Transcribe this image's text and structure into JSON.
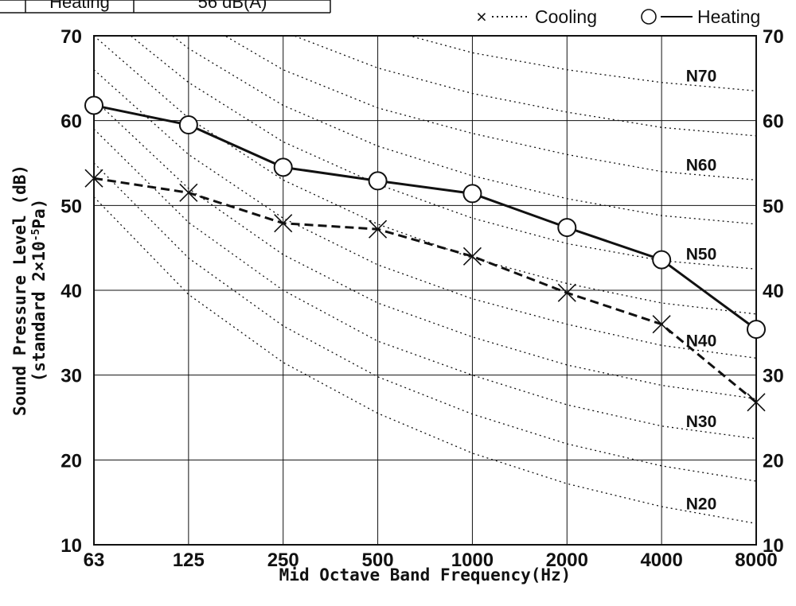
{
  "table": {
    "row_label": "Heating",
    "row_value": "56 dB(A)"
  },
  "legend": {
    "cooling_marker": "×",
    "cooling_label": "Cooling",
    "heating_label": "Heating"
  },
  "chart_data": {
    "type": "line",
    "xlabel": "Mid Octave Band Frequency(Hz)",
    "ylabel_line1": "Sound Pressure Level (dB)",
    "ylabel_line2_prefix": "(standard 2×10",
    "ylabel_line2_exp": "-5",
    "ylabel_line2_suffix": "Pa)",
    "x_categories": [
      "63",
      "125",
      "250",
      "500",
      "1000",
      "2000",
      "4000",
      "8000"
    ],
    "y_ticks": [
      10,
      20,
      30,
      40,
      50,
      60,
      70
    ],
    "ylim": [
      10,
      70
    ],
    "y_axis_right": true,
    "grid": true,
    "legend_position": "top-right",
    "series": [
      {
        "name": "Cooling",
        "marker": "x",
        "style": "dashed",
        "values": [
          53.2,
          51.5,
          47.9,
          47.2,
          44.0,
          39.7,
          36.0,
          26.8
        ]
      },
      {
        "name": "Heating",
        "marker": "circle",
        "style": "solid",
        "values": [
          61.8,
          59.5,
          54.5,
          52.9,
          51.4,
          47.4,
          43.6,
          35.4
        ]
      }
    ],
    "nc_curves": [
      {
        "label": "N20",
        "values": [
          51.0,
          39.5,
          31.5,
          25.5,
          20.8,
          17.2,
          14.5,
          12.5
        ]
      },
      {
        "label": "N30",
        "values": [
          59.0,
          48.0,
          40.0,
          34.0,
          30.0,
          26.5,
          24.0,
          22.5
        ]
      },
      {
        "label": "N40",
        "values": [
          66.0,
          56.0,
          48.5,
          43.0,
          39.0,
          36.0,
          33.5,
          32.0
        ]
      },
      {
        "label": "N50",
        "values": [
          73.5,
          64.5,
          57.5,
          52.5,
          48.5,
          45.5,
          43.5,
          42.5
        ]
      },
      {
        "label": "N60",
        "values": [
          81.0,
          72.5,
          66.0,
          61.5,
          58.5,
          56.0,
          54.0,
          53.0
        ]
      },
      {
        "label": "N70",
        "values": [
          88.5,
          81.0,
          75.0,
          71.0,
          68.0,
          66.0,
          64.5,
          63.5
        ]
      },
      {
        "values": [
          62.5,
          52.0,
          44.2,
          38.5,
          34.5,
          31.2,
          28.8,
          27.2
        ]
      },
      {
        "values": [
          70.0,
          60.3,
          53.0,
          47.8,
          43.8,
          40.8,
          38.5,
          37.2
        ]
      },
      {
        "values": [
          77.3,
          68.5,
          61.8,
          57.0,
          53.5,
          50.8,
          48.8,
          47.8
        ]
      },
      {
        "values": [
          85.0,
          76.8,
          70.5,
          66.2,
          63.2,
          61.0,
          59.2,
          58.2
        ]
      },
      {
        "values": [
          55.0,
          43.8,
          35.8,
          29.8,
          25.4,
          21.9,
          19.3,
          17.5
        ]
      }
    ]
  }
}
